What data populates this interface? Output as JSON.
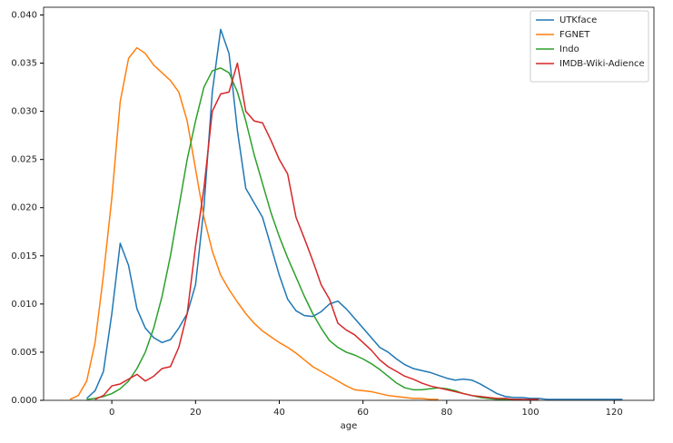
{
  "chart_data": {
    "type": "line",
    "xlabel": "age",
    "x": [
      -10,
      -8,
      -6,
      -4,
      -2,
      0,
      2,
      4,
      6,
      8,
      10,
      12,
      14,
      16,
      18,
      20,
      22,
      24,
      26,
      28,
      30,
      32,
      34,
      36,
      38,
      40,
      42,
      44,
      46,
      48,
      50,
      52,
      54,
      56,
      58,
      60,
      62,
      64,
      66,
      68,
      70,
      72,
      74,
      76,
      78,
      80,
      82,
      84,
      86,
      88,
      90,
      92,
      94,
      96,
      98,
      100,
      102,
      104,
      106,
      108,
      110,
      112,
      114,
      116,
      118,
      120,
      122
    ],
    "series": [
      {
        "name": "UTKface",
        "color": "#1f77b4",
        "values": [
          null,
          null,
          0.0002,
          0.001,
          0.003,
          0.009,
          0.0163,
          0.014,
          0.0095,
          0.0075,
          0.0065,
          0.006,
          0.0063,
          0.0075,
          0.009,
          0.012,
          0.02,
          0.032,
          0.0385,
          0.036,
          0.028,
          0.022,
          0.0205,
          0.019,
          0.016,
          0.013,
          0.0105,
          0.0093,
          0.0088,
          0.0087,
          0.0092,
          0.01,
          0.0103,
          0.0095,
          0.0085,
          0.0075,
          0.0065,
          0.0055,
          0.005,
          0.0043,
          0.0037,
          0.0033,
          0.0031,
          0.0029,
          0.0026,
          0.0023,
          0.0021,
          0.0022,
          0.0021,
          0.0017,
          0.0012,
          0.0007,
          0.0004,
          0.0003,
          0.0003,
          0.0002,
          0.0002,
          0.0001,
          0.0001,
          0.0001,
          0.0001,
          0.0001,
          0.0001,
          0.0001,
          0.0001,
          0.0001,
          0.0001
        ]
      },
      {
        "name": "FGNET",
        "color": "#ff7f0e",
        "values": [
          0.0001,
          0.0005,
          0.002,
          0.006,
          0.013,
          0.021,
          0.031,
          0.0355,
          0.0366,
          0.036,
          0.0348,
          0.034,
          0.0332,
          0.032,
          0.029,
          0.024,
          0.019,
          0.0155,
          0.013,
          0.0115,
          0.0102,
          0.009,
          0.008,
          0.0072,
          0.0066,
          0.006,
          0.0055,
          0.0049,
          0.0042,
          0.0035,
          0.003,
          0.0025,
          0.002,
          0.0015,
          0.0011,
          0.001,
          0.0009,
          0.0007,
          0.0005,
          0.0004,
          0.0003,
          0.0002,
          0.0002,
          0.0001,
          0.0001,
          null,
          null,
          null,
          null,
          null,
          null,
          null,
          null,
          null,
          null,
          null,
          null,
          null,
          null,
          null,
          null,
          null,
          null,
          null,
          null,
          null,
          null
        ]
      },
      {
        "name": "Indo",
        "color": "#2ca02c",
        "values": [
          null,
          null,
          0.0001,
          0.0002,
          0.0004,
          0.0007,
          0.0012,
          0.002,
          0.0033,
          0.005,
          0.0075,
          0.0108,
          0.015,
          0.02,
          0.025,
          0.029,
          0.0325,
          0.0342,
          0.0345,
          0.034,
          0.032,
          0.029,
          0.0255,
          0.0225,
          0.0195,
          0.017,
          0.0148,
          0.0128,
          0.0108,
          0.009,
          0.0075,
          0.0062,
          0.0055,
          0.005,
          0.0047,
          0.0043,
          0.0038,
          0.0032,
          0.0025,
          0.0018,
          0.0013,
          0.0011,
          0.0011,
          0.0012,
          0.0013,
          0.0012,
          0.001,
          0.0007,
          0.0005,
          0.0003,
          0.0002,
          0.0001,
          0.0001,
          0.0001,
          0.0001,
          null,
          null,
          null,
          null,
          null,
          null,
          null,
          null,
          null,
          null,
          null,
          null
        ]
      },
      {
        "name": "IMDB-Wiki-Adience",
        "color": "#d62728",
        "values": [
          null,
          null,
          null,
          0.0001,
          0.0005,
          0.0015,
          0.0017,
          0.0022,
          0.0027,
          0.002,
          0.0025,
          0.0033,
          0.0035,
          0.0055,
          0.009,
          0.016,
          0.022,
          0.03,
          0.0318,
          0.032,
          0.035,
          0.03,
          0.029,
          0.0288,
          0.027,
          0.025,
          0.0235,
          0.019,
          0.0168,
          0.0145,
          0.012,
          0.0105,
          0.008,
          0.0073,
          0.0068,
          0.006,
          0.0052,
          0.0042,
          0.0035,
          0.003,
          0.0025,
          0.0022,
          0.0018,
          0.0015,
          0.0013,
          0.0011,
          0.0009,
          0.0007,
          0.0005,
          0.0004,
          0.0003,
          0.0002,
          0.0002,
          0.0001,
          0.0001,
          0.0001,
          0.0001,
          null,
          null,
          null,
          null,
          null,
          null,
          null,
          null,
          null,
          null
        ]
      }
    ],
    "xlim": [
      -16.3,
      129.5
    ],
    "ylim": [
      0,
      0.0408
    ],
    "xticks": [
      0,
      20,
      40,
      60,
      80,
      100,
      120
    ],
    "yticks": [
      {
        "value": 0,
        "label": "0.000"
      },
      {
        "value": 0.005,
        "label": "0.005"
      },
      {
        "value": 0.01,
        "label": "0.010"
      },
      {
        "value": 0.015,
        "label": "0.015"
      },
      {
        "value": 0.02,
        "label": "0.020"
      },
      {
        "value": 0.025,
        "label": "0.025"
      },
      {
        "value": 0.03,
        "label": "0.030"
      },
      {
        "value": 0.035,
        "label": "0.035"
      },
      {
        "value": 0.04,
        "label": "0.040"
      }
    ],
    "grid": false,
    "legend": "upper right"
  }
}
